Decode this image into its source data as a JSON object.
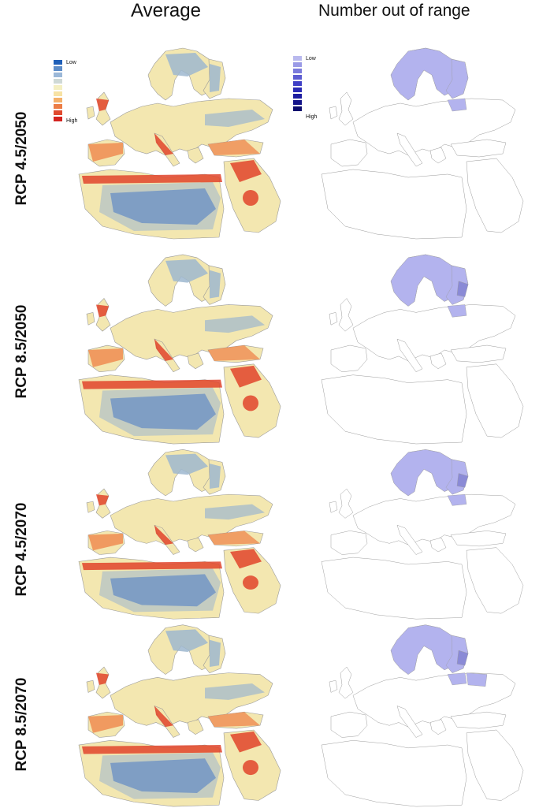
{
  "columns": {
    "average": "Average",
    "out_of_range": "Number out of range"
  },
  "rows": [
    {
      "label": "RCP 4.5/2050"
    },
    {
      "label": "RCP 8.5/2050"
    },
    {
      "label": "RCP 4.5/2070"
    },
    {
      "label": "RCP 8.5/2070"
    }
  ],
  "legend_average": {
    "low": "Low",
    "high": "High",
    "colors": [
      "#1f5fb8",
      "#5d8cc8",
      "#9bb8d8",
      "#cfd9d6",
      "#f4efc2",
      "#f7e2a4",
      "#f4b06a",
      "#ec7d45",
      "#e04a2f",
      "#d42420"
    ]
  },
  "legend_out_of_range": {
    "low": "Low",
    "high": "High",
    "colors": [
      "#b9b9ee",
      "#9a9ae6",
      "#7b7bdc",
      "#5d5dd2",
      "#3f3fc6",
      "#2a2ab4",
      "#1d1da0",
      "#14148a",
      "#0d0d6e"
    ]
  },
  "map_colors": {
    "land_avg": "#f3e7b0",
    "warm": "#ef8c52",
    "hot": "#e0442c",
    "cool": "#9db7cf",
    "cold": "#3f6fb8",
    "oor_fill": "#b3b3ee",
    "oor_dark": "#8a8ad6",
    "border": "#9a9a9a"
  }
}
